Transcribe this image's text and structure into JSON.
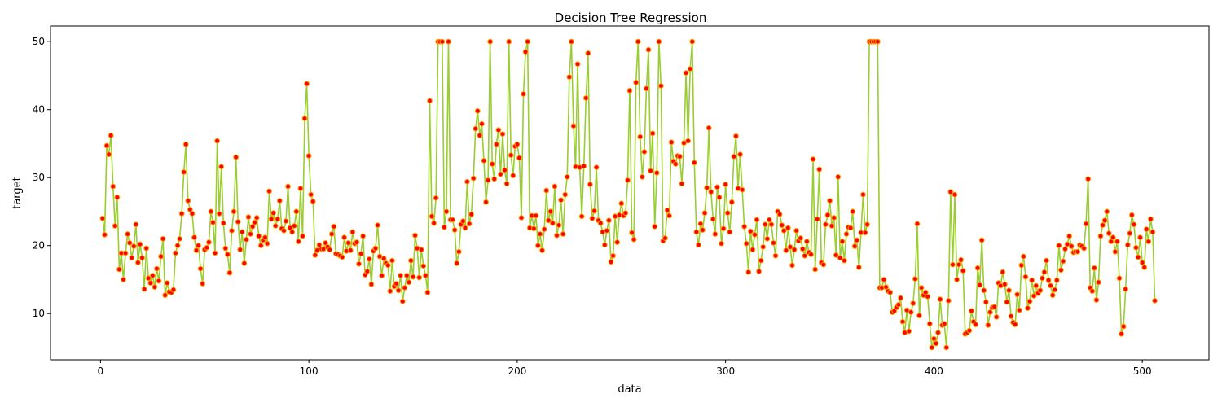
{
  "chart_data": {
    "type": "line",
    "title": "Decision Tree Regression",
    "xlabel": "data",
    "ylabel": "target",
    "xlim": [
      -24,
      532
    ],
    "ylim": [
      3.2,
      52.3
    ],
    "xticks": [
      0,
      100,
      200,
      300,
      400,
      500
    ],
    "yticks": [
      10,
      20,
      30,
      40,
      50
    ],
    "grid": false,
    "legend": "none",
    "line_color": "#9acd32",
    "marker_face": "#ff0000",
    "marker_edge": "#ffa500",
    "x_start": 1,
    "x_step": 1,
    "series": [
      {
        "values": [
          24.0,
          21.6,
          34.7,
          33.4,
          36.2,
          28.7,
          22.9,
          27.1,
          16.5,
          18.9,
          15.0,
          18.9,
          21.7,
          20.4,
          18.2,
          19.9,
          23.1,
          17.5,
          20.2,
          18.2,
          13.6,
          19.6,
          15.2,
          14.5,
          15.6,
          13.9,
          16.6,
          14.8,
          18.4,
          21.0,
          12.7,
          14.5,
          13.2,
          13.1,
          13.5,
          18.9,
          20.0,
          21.0,
          24.7,
          30.8,
          34.9,
          26.6,
          25.3,
          24.7,
          21.2,
          19.3,
          20.0,
          16.6,
          14.4,
          19.4,
          19.7,
          20.5,
          25.0,
          23.4,
          18.9,
          35.4,
          24.7,
          31.6,
          23.3,
          19.6,
          18.7,
          16.0,
          22.2,
          25.0,
          33.0,
          23.5,
          19.4,
          22.0,
          17.4,
          20.9,
          24.2,
          21.7,
          22.8,
          23.4,
          24.1,
          21.4,
          20.0,
          20.8,
          21.2,
          20.3,
          28.0,
          23.9,
          24.8,
          22.9,
          23.9,
          26.6,
          22.5,
          22.2,
          23.6,
          28.7,
          22.6,
          22.0,
          22.9,
          25.0,
          20.6,
          28.4,
          21.4,
          38.7,
          43.8,
          33.2,
          27.5,
          26.5,
          18.6,
          19.3,
          20.1,
          19.5,
          19.5,
          20.4,
          19.8,
          19.4,
          21.7,
          22.8,
          18.8,
          18.7,
          18.5,
          18.3,
          21.2,
          19.2,
          20.4,
          19.3,
          22.0,
          20.3,
          20.5,
          17.3,
          18.8,
          21.4,
          15.7,
          16.2,
          18.0,
          14.3,
          19.2,
          19.6,
          23.0,
          18.4,
          15.6,
          18.1,
          17.4,
          17.1,
          13.3,
          17.8,
          14.0,
          14.4,
          13.4,
          15.6,
          11.8,
          13.8,
          15.6,
          14.6,
          17.8,
          15.4,
          21.5,
          19.6,
          15.3,
          19.4,
          17.0,
          15.6,
          13.1,
          41.3,
          24.3,
          23.3,
          27.0,
          50.0,
          50.0,
          50.0,
          22.7,
          25.0,
          50.0,
          23.8,
          23.8,
          22.3,
          17.4,
          19.1,
          23.1,
          23.6,
          22.6,
          29.4,
          23.2,
          24.6,
          29.9,
          37.2,
          39.8,
          36.2,
          37.9,
          32.5,
          26.4,
          29.6,
          50.0,
          32.0,
          29.8,
          34.9,
          37.0,
          30.5,
          36.4,
          31.1,
          29.1,
          50.0,
          33.3,
          30.3,
          34.6,
          34.9,
          32.9,
          24.1,
          42.3,
          48.5,
          50.0,
          22.6,
          24.4,
          22.5,
          24.4,
          20.0,
          21.7,
          19.3,
          22.4,
          28.1,
          23.7,
          25.0,
          23.3,
          28.7,
          21.5,
          23.0,
          26.7,
          21.7,
          27.5,
          30.1,
          44.8,
          50.0,
          37.6,
          31.6,
          46.7,
          31.5,
          24.3,
          31.7,
          41.7,
          48.3,
          29.0,
          24.0,
          25.1,
          31.5,
          23.7,
          23.3,
          22.0,
          20.1,
          22.2,
          23.7,
          17.6,
          18.5,
          24.3,
          20.5,
          24.5,
          26.2,
          24.4,
          24.8,
          29.6,
          42.8,
          21.9,
          20.9,
          44.0,
          50.0,
          36.0,
          30.1,
          33.8,
          43.1,
          48.8,
          31.0,
          36.5,
          22.8,
          30.7,
          50.0,
          43.5,
          20.7,
          21.1,
          25.2,
          24.4,
          35.2,
          32.4,
          32.0,
          33.2,
          33.1,
          29.1,
          35.1,
          45.4,
          35.4,
          46.0,
          50.0,
          32.2,
          22.0,
          20.1,
          23.2,
          22.3,
          24.8,
          28.5,
          37.3,
          27.9,
          23.9,
          21.7,
          28.6,
          27.1,
          20.3,
          22.5,
          29.0,
          24.8,
          22.0,
          26.4,
          33.1,
          36.1,
          28.4,
          33.4,
          28.2,
          22.8,
          20.3,
          16.1,
          22.1,
          19.4,
          21.6,
          23.8,
          16.2,
          17.8,
          19.8,
          23.1,
          21.0,
          23.8,
          23.1,
          20.4,
          18.5,
          25.0,
          24.6,
          23.0,
          22.2,
          19.3,
          22.6,
          19.8,
          17.1,
          19.4,
          22.2,
          20.7,
          21.1,
          19.5,
          18.5,
          20.6,
          19.0,
          18.7,
          32.7,
          16.5,
          23.9,
          31.2,
          17.5,
          17.2,
          23.1,
          24.5,
          26.6,
          22.9,
          24.1,
          18.6,
          30.1,
          18.2,
          20.6,
          17.8,
          21.7,
          22.7,
          22.6,
          25.0,
          19.9,
          20.8,
          16.8,
          21.9,
          27.5,
          21.9,
          23.1,
          50.0,
          50.0,
          50.0,
          50.0,
          50.0,
          13.8,
          13.8,
          15.0,
          13.9,
          13.3,
          13.1,
          10.2,
          10.4,
          10.9,
          11.3,
          12.3,
          8.8,
          7.2,
          10.5,
          7.4,
          10.2,
          11.5,
          15.1,
          23.2,
          9.7,
          13.8,
          12.7,
          13.1,
          12.5,
          8.5,
          5.0,
          6.3,
          5.6,
          7.2,
          12.1,
          8.3,
          8.5,
          5.0,
          11.9,
          27.9,
          17.2,
          27.5,
          15.0,
          17.2,
          17.9,
          16.3,
          7.0,
          7.2,
          7.5,
          10.4,
          8.8,
          8.4,
          16.7,
          14.2,
          20.8,
          13.4,
          11.7,
          8.3,
          10.2,
          10.9,
          11.0,
          9.5,
          14.5,
          14.1,
          16.1,
          14.3,
          11.7,
          13.4,
          9.6,
          8.7,
          8.4,
          12.8,
          10.5,
          17.1,
          18.4,
          15.4,
          10.8,
          11.8,
          14.9,
          12.6,
          14.1,
          13.0,
          13.4,
          15.2,
          16.1,
          17.8,
          14.9,
          14.1,
          12.7,
          13.5,
          14.9,
          20.0,
          16.4,
          17.7,
          19.5,
          20.2,
          21.4,
          19.9,
          19.0,
          19.1,
          19.1,
          20.1,
          19.9,
          19.6,
          23.2,
          29.8,
          13.8,
          13.3,
          16.7,
          12.0,
          14.6,
          21.4,
          23.0,
          23.7,
          25.0,
          21.8,
          20.6,
          21.2,
          19.1,
          20.6,
          15.2,
          7.0,
          8.1,
          13.6,
          20.1,
          21.8,
          24.5,
          23.1,
          19.7,
          18.3,
          21.2,
          17.5,
          16.8,
          22.4,
          20.6,
          23.9,
          22.0,
          11.9
        ]
      }
    ]
  }
}
